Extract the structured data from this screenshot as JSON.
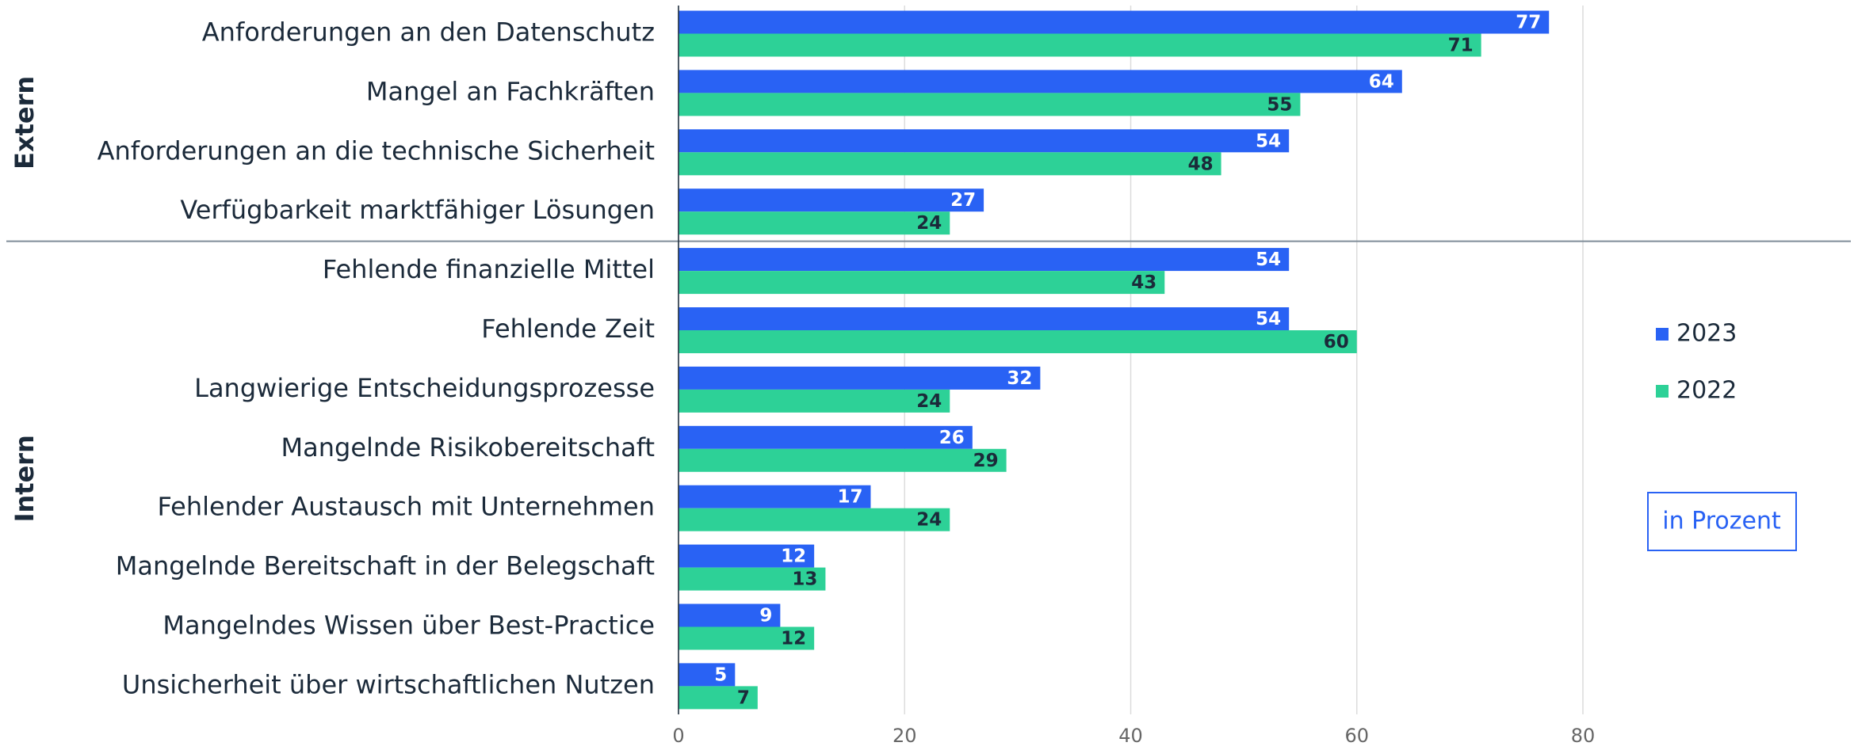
{
  "chart_data": {
    "type": "bar",
    "orientation": "horizontal",
    "groups": [
      {
        "name": "Extern",
        "categories": [
          "Anforderungen an den Datenschutz",
          "Mangel an Fachkräften",
          "Anforderungen an die technische Sicherheit",
          "Verfügbarkeit marktfähiger Lösungen"
        ]
      },
      {
        "name": "Intern",
        "categories": [
          "Fehlende finanzielle Mittel",
          "Fehlende Zeit",
          "Langwierige Entscheidungsprozesse",
          "Mangelnde Risikobereitschaft",
          "Fehlender Austausch mit Unternehmen",
          "Mangelnde Bereitschaft in der Belegschaft",
          "Mangelndes Wissen über Best-Practice",
          "Unsicherheit über wirtschaftlichen Nutzen"
        ]
      }
    ],
    "series": [
      {
        "name": "2023",
        "color": "#2962f4",
        "values": [
          77,
          64,
          54,
          27,
          54,
          54,
          32,
          26,
          17,
          12,
          9,
          5
        ]
      },
      {
        "name": "2022",
        "color": "#2dd197",
        "values": [
          71,
          55,
          48,
          24,
          43,
          60,
          24,
          29,
          24,
          13,
          12,
          7
        ]
      }
    ],
    "xlim": [
      0,
      80
    ],
    "xticks": [
      0,
      20,
      40,
      60,
      80
    ],
    "grid": true,
    "annotation": "in Prozent"
  }
}
